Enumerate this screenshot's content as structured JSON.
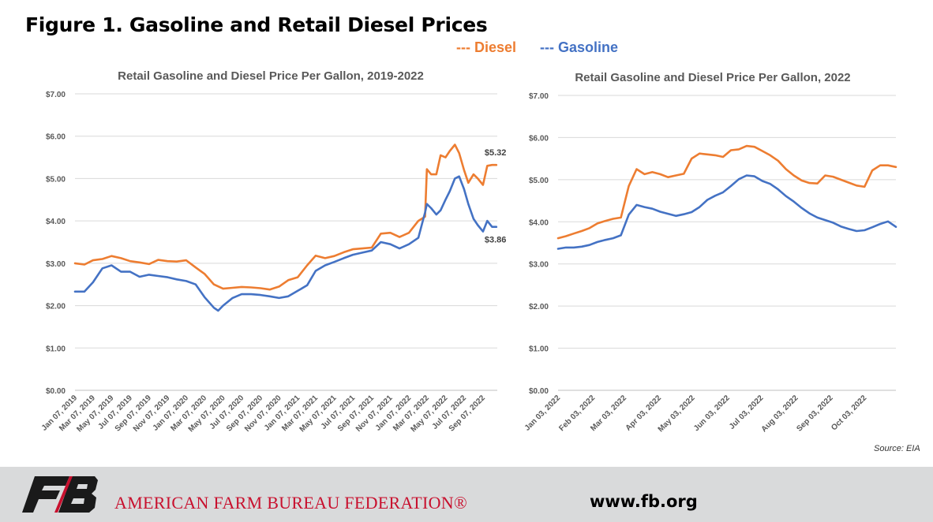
{
  "figure_title": "Figure 1. Gasoline and Retail Diesel Prices",
  "legend": {
    "diesel": "--- Diesel",
    "gasoline": "--- Gasoline"
  },
  "colors": {
    "diesel": "#ED7D31",
    "gasoline": "#4472C4",
    "brand": "#c8102e"
  },
  "source": "Source: EIA",
  "footer": {
    "org": "AMERICAN FARM BUREAU FEDERATION®",
    "url": "www.fb.org",
    "logo_icon": "fb-logo-icon"
  },
  "chart_data": [
    {
      "type": "line",
      "title": "Retail Gasoline and Diesel Price Per Gallon, 2019-2022",
      "ylim": [
        0,
        7
      ],
      "y_ticks": [
        "$0.00",
        "$1.00",
        "$2.00",
        "$3.00",
        "$4.00",
        "$5.00",
        "$6.00",
        "$7.00"
      ],
      "x_ticks": [
        "Jan 07, 2019",
        "Mar 07, 2019",
        "May 07, 2019",
        "Jul 07, 2019",
        "Sep 07, 2019",
        "Nov 07, 2019",
        "Jan 07, 2020",
        "Mar 07, 2020",
        "May 07, 2020",
        "Jul 07, 2020",
        "Sep 07, 2020",
        "Nov 07, 2020",
        "Jan 07, 2021",
        "Mar 07, 2021",
        "May 07, 2021",
        "Jul 07, 2021",
        "Sep 07, 2021",
        "Nov 07, 2021",
        "Jan 07, 2022",
        "Mar 07, 2022",
        "May 07, 2022",
        "Jul 07, 2022",
        "Sep 07, 2022"
      ],
      "grid": true,
      "series": [
        {
          "name": "Diesel",
          "x": [
            "2019-01-07",
            "2019-02-07",
            "2019-03-07",
            "2019-04-07",
            "2019-05-07",
            "2019-06-07",
            "2019-07-07",
            "2019-08-07",
            "2019-09-07",
            "2019-10-07",
            "2019-11-07",
            "2019-12-07",
            "2020-01-07",
            "2020-02-07",
            "2020-03-07",
            "2020-04-07",
            "2020-05-07",
            "2020-06-07",
            "2020-07-07",
            "2020-08-07",
            "2020-09-07",
            "2020-10-07",
            "2020-11-07",
            "2020-12-07",
            "2021-01-07",
            "2021-02-07",
            "2021-03-07",
            "2021-04-07",
            "2021-05-07",
            "2021-06-07",
            "2021-07-07",
            "2021-08-07",
            "2021-09-07",
            "2021-10-07",
            "2021-11-07",
            "2021-12-07",
            "2022-01-07",
            "2022-02-07",
            "2022-03-01",
            "2022-03-07",
            "2022-03-21",
            "2022-04-07",
            "2022-04-21",
            "2022-05-07",
            "2022-05-21",
            "2022-06-07",
            "2022-06-21",
            "2022-07-07",
            "2022-07-21",
            "2022-08-07",
            "2022-08-21",
            "2022-09-07",
            "2022-09-21",
            "2022-10-07",
            "2022-10-21"
          ],
          "values": [
            3.0,
            2.97,
            3.07,
            3.1,
            3.17,
            3.12,
            3.05,
            3.02,
            2.98,
            3.08,
            3.05,
            3.04,
            3.07,
            2.9,
            2.75,
            2.5,
            2.4,
            2.42,
            2.44,
            2.43,
            2.41,
            2.38,
            2.45,
            2.6,
            2.67,
            2.95,
            3.18,
            3.12,
            3.17,
            3.26,
            3.33,
            3.35,
            3.37,
            3.7,
            3.72,
            3.62,
            3.72,
            4.0,
            4.1,
            5.22,
            5.1,
            5.1,
            5.55,
            5.5,
            5.65,
            5.8,
            5.6,
            5.2,
            4.9,
            5.1,
            5.0,
            4.85,
            5.3,
            5.32,
            5.32
          ]
        },
        {
          "name": "Gasoline",
          "x": [
            "2019-01-07",
            "2019-02-07",
            "2019-03-07",
            "2019-04-07",
            "2019-05-07",
            "2019-06-07",
            "2019-07-07",
            "2019-08-07",
            "2019-09-07",
            "2019-10-07",
            "2019-11-07",
            "2019-12-07",
            "2020-01-07",
            "2020-02-07",
            "2020-03-07",
            "2020-04-07",
            "2020-04-21",
            "2020-05-07",
            "2020-06-07",
            "2020-07-07",
            "2020-08-07",
            "2020-09-07",
            "2020-10-07",
            "2020-11-07",
            "2020-12-07",
            "2021-01-07",
            "2021-02-07",
            "2021-03-07",
            "2021-04-07",
            "2021-05-07",
            "2021-06-07",
            "2021-07-07",
            "2021-08-07",
            "2021-09-07",
            "2021-10-07",
            "2021-11-07",
            "2021-12-07",
            "2022-01-07",
            "2022-02-07",
            "2022-03-01",
            "2022-03-07",
            "2022-03-21",
            "2022-04-07",
            "2022-04-21",
            "2022-05-07",
            "2022-05-21",
            "2022-06-07",
            "2022-06-21",
            "2022-07-07",
            "2022-07-21",
            "2022-08-07",
            "2022-08-21",
            "2022-09-07",
            "2022-09-21",
            "2022-10-07",
            "2022-10-21"
          ],
          "values": [
            2.33,
            2.33,
            2.55,
            2.88,
            2.95,
            2.8,
            2.8,
            2.68,
            2.73,
            2.7,
            2.67,
            2.62,
            2.58,
            2.5,
            2.2,
            1.95,
            1.88,
            2.0,
            2.18,
            2.27,
            2.27,
            2.25,
            2.22,
            2.18,
            2.22,
            2.35,
            2.48,
            2.82,
            2.95,
            3.03,
            3.12,
            3.2,
            3.25,
            3.3,
            3.5,
            3.45,
            3.35,
            3.45,
            3.6,
            4.2,
            4.4,
            4.3,
            4.15,
            4.25,
            4.5,
            4.7,
            5.0,
            5.05,
            4.75,
            4.4,
            4.05,
            3.9,
            3.75,
            4.0,
            3.86,
            3.86
          ]
        }
      ],
      "annotations": [
        {
          "series": "Diesel",
          "x": "2022-10-21",
          "label": "$5.32"
        },
        {
          "series": "Gasoline",
          "x": "2022-10-21",
          "label": "$3.86"
        }
      ]
    },
    {
      "type": "line",
      "title": "Retail Gasoline and Diesel Price Per Gallon, 2022",
      "ylim": [
        0,
        7
      ],
      "y_ticks": [
        "$0.00",
        "$1.00",
        "$2.00",
        "$3.00",
        "$4.00",
        "$5.00",
        "$6.00",
        "$7.00"
      ],
      "x_ticks": [
        "Jan 03, 2022",
        "Feb 03, 2022",
        "Mar 03, 2022",
        "Apr 03, 2022",
        "May 03, 2022",
        "Jun 03, 2022",
        "Jul 03, 2022",
        "Aug 03, 2022",
        "Sep 03, 2022",
        "Oct 03, 2022"
      ],
      "grid": true,
      "series": [
        {
          "name": "Diesel",
          "x": [
            "2022-01-03",
            "2022-01-10",
            "2022-01-17",
            "2022-01-24",
            "2022-01-31",
            "2022-02-07",
            "2022-02-14",
            "2022-02-21",
            "2022-02-28",
            "2022-03-07",
            "2022-03-14",
            "2022-03-21",
            "2022-03-28",
            "2022-04-04",
            "2022-04-11",
            "2022-04-18",
            "2022-04-25",
            "2022-05-02",
            "2022-05-09",
            "2022-05-16",
            "2022-05-23",
            "2022-05-30",
            "2022-06-06",
            "2022-06-13",
            "2022-06-20",
            "2022-06-27",
            "2022-07-04",
            "2022-07-11",
            "2022-07-18",
            "2022-07-25",
            "2022-08-01",
            "2022-08-08",
            "2022-08-15",
            "2022-08-22",
            "2022-08-29",
            "2022-09-05",
            "2022-09-12",
            "2022-09-19",
            "2022-09-26",
            "2022-10-03",
            "2022-10-10",
            "2022-10-17",
            "2022-10-24",
            "2022-10-31"
          ],
          "values": [
            3.61,
            3.66,
            3.72,
            3.78,
            3.85,
            3.96,
            4.02,
            4.07,
            4.1,
            4.85,
            5.25,
            5.13,
            5.18,
            5.13,
            5.06,
            5.1,
            5.14,
            5.5,
            5.62,
            5.6,
            5.58,
            5.54,
            5.7,
            5.72,
            5.8,
            5.78,
            5.68,
            5.58,
            5.45,
            5.25,
            5.1,
            4.98,
            4.92,
            4.91,
            5.1,
            5.07,
            5.0,
            4.93,
            4.86,
            4.83,
            5.22,
            5.34,
            5.34,
            5.3
          ]
        },
        {
          "name": "Gasoline",
          "x": [
            "2022-01-03",
            "2022-01-10",
            "2022-01-17",
            "2022-01-24",
            "2022-01-31",
            "2022-02-07",
            "2022-02-14",
            "2022-02-21",
            "2022-02-28",
            "2022-03-07",
            "2022-03-14",
            "2022-03-21",
            "2022-03-28",
            "2022-04-04",
            "2022-04-11",
            "2022-04-18",
            "2022-04-25",
            "2022-05-02",
            "2022-05-09",
            "2022-05-16",
            "2022-05-23",
            "2022-05-30",
            "2022-06-06",
            "2022-06-13",
            "2022-06-20",
            "2022-06-27",
            "2022-07-04",
            "2022-07-11",
            "2022-07-18",
            "2022-07-25",
            "2022-08-01",
            "2022-08-08",
            "2022-08-15",
            "2022-08-22",
            "2022-08-29",
            "2022-09-05",
            "2022-09-12",
            "2022-09-19",
            "2022-09-26",
            "2022-10-03",
            "2022-10-10",
            "2022-10-17",
            "2022-10-24",
            "2022-10-31"
          ],
          "values": [
            3.36,
            3.39,
            3.39,
            3.41,
            3.45,
            3.52,
            3.57,
            3.61,
            3.68,
            4.17,
            4.4,
            4.35,
            4.31,
            4.24,
            4.19,
            4.14,
            4.18,
            4.23,
            4.35,
            4.52,
            4.62,
            4.7,
            4.85,
            5.01,
            5.1,
            5.08,
            4.97,
            4.9,
            4.77,
            4.61,
            4.48,
            4.33,
            4.2,
            4.1,
            4.04,
            3.98,
            3.89,
            3.83,
            3.78,
            3.8,
            3.87,
            3.95,
            4.01,
            3.88
          ]
        }
      ]
    }
  ]
}
